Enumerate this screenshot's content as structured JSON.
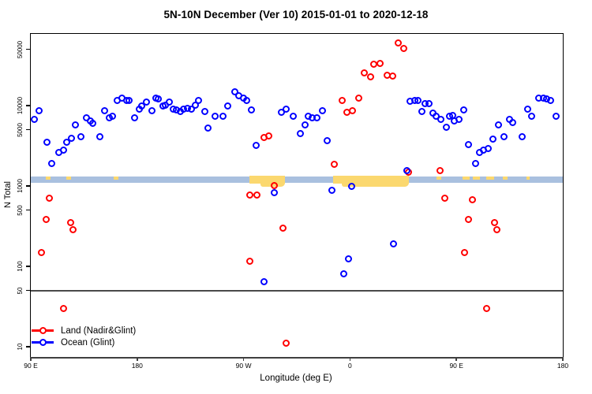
{
  "chart": {
    "title": "5N-10N December (Ver 10)   2015-01-01 to 2020-12-18",
    "xlabel": "Longitude (deg E)",
    "ylabel": "N Total"
  },
  "legend": {
    "items": [
      {
        "id": "land",
        "label": "Land (Nadir&Glint)",
        "color": "#ff0000"
      },
      {
        "id": "ocean",
        "label": "Ocean (Glint)",
        "color": "#0000ff"
      }
    ]
  },
  "chart_data": {
    "type": "scatter",
    "y_scale": "log",
    "x_axis": {
      "range_deg": [
        0,
        450
      ],
      "ticks": [
        {
          "deg": 0,
          "label": "90 E"
        },
        {
          "deg": 90,
          "label": "180"
        },
        {
          "deg": 180,
          "label": "90 W"
        },
        {
          "deg": 270,
          "label": "0"
        },
        {
          "deg": 360,
          "label": "90 E"
        },
        {
          "deg": 450,
          "label": "180"
        }
      ]
    },
    "y_axis": {
      "range": [
        8,
        80000
      ],
      "ticks": [
        {
          "value": 10,
          "label": "10"
        },
        {
          "value": 50,
          "label": "50"
        },
        {
          "value": 100,
          "label": "100"
        },
        {
          "value": 500,
          "label": "500"
        },
        {
          "value": 1000,
          "label": "1000"
        },
        {
          "value": 5000,
          "label": "5000"
        },
        {
          "value": 10000,
          "label": "10000"
        },
        {
          "value": 50000,
          "label": "50000"
        }
      ]
    },
    "reference_line_n": 50,
    "reference_line_color": "#4a4a4a",
    "band": {
      "n_low": 1100,
      "n_high": 1300,
      "color": "#a9c0df"
    },
    "highlight_color": "#fbd86f",
    "highlight_segments": [
      {
        "from_deg": 13,
        "to_deg": 17,
        "small": true
      },
      {
        "from_deg": 30,
        "to_deg": 34,
        "small": true
      },
      {
        "from_deg": 70,
        "to_deg": 74,
        "small": true
      },
      {
        "from_deg": 185,
        "to_deg": 215,
        "small": false,
        "droop_from_deg": 194,
        "droop_to_deg": 215
      },
      {
        "from_deg": 256,
        "to_deg": 320,
        "small": false,
        "droop_from_deg": 263,
        "droop_to_deg": 320
      },
      {
        "from_deg": 343,
        "to_deg": 347,
        "small": true
      },
      {
        "from_deg": 365,
        "to_deg": 371,
        "small": true
      },
      {
        "from_deg": 374,
        "to_deg": 380,
        "small": true
      },
      {
        "from_deg": 385,
        "to_deg": 392,
        "small": true
      },
      {
        "from_deg": 399,
        "to_deg": 403,
        "small": true
      },
      {
        "from_deg": 419,
        "to_deg": 422,
        "small": true
      }
    ],
    "series": [
      {
        "id": "land",
        "name": "Land (Nadir&Glint)",
        "color": "#ff0000",
        "points": [
          [
            197,
            4050
          ],
          [
            201.6,
            4150
          ],
          [
            257,
            1840
          ],
          [
            263.1,
            11700
          ],
          [
            277.1,
            12500
          ],
          [
            267.7,
            8300
          ],
          [
            272.4,
            8700
          ],
          [
            282.4,
            25800
          ],
          [
            287.1,
            23000
          ],
          [
            290.4,
            32400
          ],
          [
            295.7,
            33100
          ],
          [
            301.7,
            24100
          ],
          [
            306.4,
            23500
          ],
          [
            311.1,
            59600
          ],
          [
            315.7,
            50900
          ],
          [
            16,
            700
          ],
          [
            12.7,
            380
          ],
          [
            33.4,
            350
          ],
          [
            36,
            283
          ],
          [
            8.7,
            150
          ],
          [
            27.4,
            30
          ],
          [
            185.6,
            780
          ],
          [
            191.6,
            780
          ],
          [
            206.3,
            1020
          ],
          [
            213,
            302
          ],
          [
            185.6,
            117
          ],
          [
            216.3,
            11
          ],
          [
            319.8,
            1470
          ],
          [
            346.5,
            1570
          ],
          [
            350.4,
            700
          ],
          [
            373.8,
            680
          ],
          [
            370.5,
            380
          ],
          [
            392.5,
            350
          ],
          [
            394.5,
            283
          ],
          [
            367.2,
            150
          ],
          [
            385.8,
            30
          ]
        ]
      },
      {
        "id": "ocean",
        "name": "Ocean (Glint)",
        "color": "#0000ff",
        "points": [
          [
            3.3,
            6800
          ],
          [
            7.3,
            8700
          ],
          [
            13.4,
            3500
          ],
          [
            18,
            1900
          ],
          [
            23.4,
            2600
          ],
          [
            27.4,
            2800
          ],
          [
            30.7,
            3500
          ],
          [
            34.7,
            3900
          ],
          [
            38,
            5700
          ],
          [
            42.7,
            4100
          ],
          [
            47.4,
            7000
          ],
          [
            50.7,
            6400
          ],
          [
            52.7,
            6000
          ],
          [
            58.1,
            4100
          ],
          [
            62.7,
            8700
          ],
          [
            66.1,
            7100
          ],
          [
            68.8,
            7300
          ],
          [
            72.8,
            11700
          ],
          [
            76.8,
            12300
          ],
          [
            80.8,
            11500
          ],
          [
            83.4,
            11500
          ],
          [
            88.1,
            7100
          ],
          [
            91.5,
            9100
          ],
          [
            94.1,
            9800
          ],
          [
            97.5,
            11000
          ],
          [
            102.8,
            8700
          ],
          [
            106.1,
            12500
          ],
          [
            108.1,
            12000
          ],
          [
            111.5,
            9800
          ],
          [
            114.1,
            10200
          ],
          [
            117.5,
            11000
          ],
          [
            120.8,
            9100
          ],
          [
            123.5,
            8900
          ],
          [
            126.8,
            8500
          ],
          [
            129.5,
            9100
          ],
          [
            132.8,
            9300
          ],
          [
            136.2,
            9100
          ],
          [
            139.5,
            10200
          ],
          [
            142.2,
            11500
          ],
          [
            146.9,
            8500
          ],
          [
            150.2,
            5200
          ],
          [
            156.2,
            7300
          ],
          [
            162.9,
            7300
          ],
          [
            166.9,
            10000
          ],
          [
            172.9,
            14700
          ],
          [
            176.2,
            13400
          ],
          [
            179.6,
            12500
          ],
          [
            182.9,
            11700
          ],
          [
            186.9,
            8900
          ],
          [
            190.9,
            3200
          ],
          [
            206.3,
            820
          ],
          [
            197.6,
            65
          ],
          [
            212.3,
            8200
          ],
          [
            216.3,
            9100
          ],
          [
            221.7,
            7300
          ],
          [
            227.7,
            4500
          ],
          [
            231.7,
            5800
          ],
          [
            235,
            7400
          ],
          [
            237.7,
            7100
          ],
          [
            241.7,
            7100
          ],
          [
            247,
            8700
          ],
          [
            251,
            3700
          ],
          [
            255,
            890
          ],
          [
            271.7,
            980
          ],
          [
            264.4,
            80
          ],
          [
            268.4,
            125
          ],
          [
            307.1,
            190
          ],
          [
            318.4,
            1570
          ],
          [
            321,
            11200
          ],
          [
            325,
            11700
          ],
          [
            327.7,
            11500
          ],
          [
            331.1,
            8500
          ],
          [
            333.7,
            10700
          ],
          [
            337.1,
            10500
          ],
          [
            340.4,
            8000
          ],
          [
            343.1,
            7300
          ],
          [
            347.1,
            6800
          ],
          [
            351.8,
            5400
          ],
          [
            354.4,
            7400
          ],
          [
            357.1,
            7600
          ],
          [
            358.4,
            6400
          ],
          [
            362.4,
            6800
          ],
          [
            366.5,
            8900
          ],
          [
            370.5,
            3300
          ],
          [
            376.5,
            1900
          ],
          [
            379.8,
            2600
          ],
          [
            383.2,
            2800
          ],
          [
            387.2,
            2950
          ],
          [
            391.2,
            3800
          ],
          [
            395.9,
            5800
          ],
          [
            400.5,
            4100
          ],
          [
            405.2,
            6800
          ],
          [
            407.9,
            6100
          ],
          [
            415.9,
            4100
          ],
          [
            420.5,
            9100
          ],
          [
            423.9,
            7300
          ],
          [
            429.9,
            12300
          ],
          [
            433.9,
            12500
          ],
          [
            436.5,
            12000
          ],
          [
            439.9,
            11700
          ],
          [
            444.5,
            7300
          ]
        ]
      }
    ]
  }
}
